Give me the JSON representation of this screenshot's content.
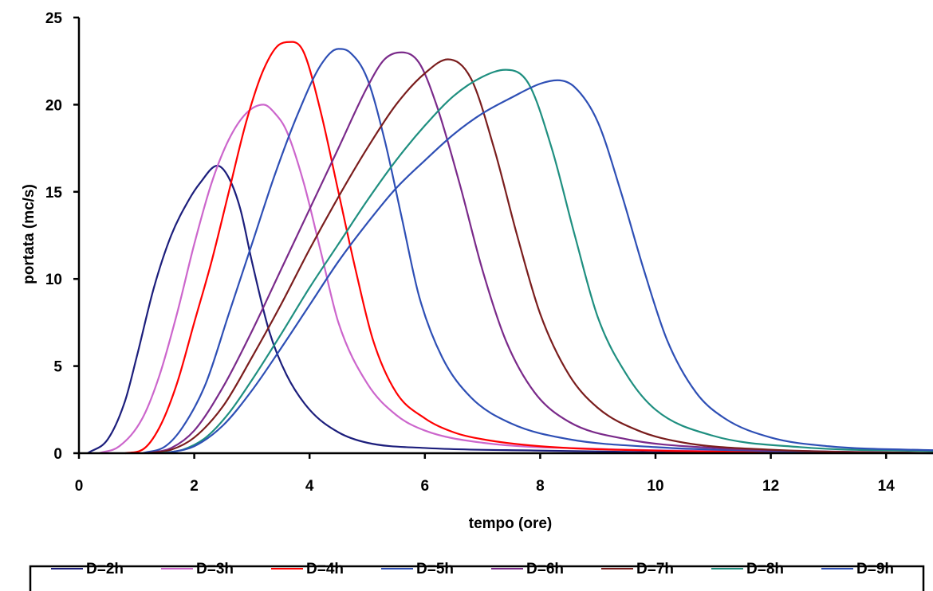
{
  "chart_data": {
    "type": "line",
    "title": "",
    "xlabel": "tempo (ore)",
    "ylabel": "portata (mc/s)",
    "xlim": [
      0,
      15
    ],
    "ylim": [
      0,
      25
    ],
    "xticks": [
      0,
      2,
      4,
      6,
      8,
      10,
      12,
      14
    ],
    "yticks": [
      0,
      5,
      10,
      15,
      20,
      25
    ],
    "grid": false,
    "legend_position": "bottom",
    "series": [
      {
        "name": "D=2h",
        "color": "#1c1e7c",
        "x": [
          0.15,
          0.5,
          0.8,
          1.0,
          1.3,
          1.6,
          1.9,
          2.1,
          2.4,
          2.6,
          2.8,
          3.0,
          3.3,
          3.6,
          4.0,
          4.5,
          5.0,
          6.0,
          8.0,
          10.0,
          12.0,
          15.0
        ],
        "y": [
          0,
          0.8,
          3,
          5.5,
          9.5,
          12.5,
          14.5,
          15.5,
          16.5,
          15.8,
          14,
          11,
          7,
          4.5,
          2.5,
          1.2,
          0.6,
          0.3,
          0.15,
          0.05,
          0.02,
          0
        ]
      },
      {
        "name": "D=3h",
        "color": "#cc66cc",
        "x": [
          0.35,
          0.7,
          1.1,
          1.4,
          1.7,
          2.0,
          2.3,
          2.6,
          2.9,
          3.2,
          3.4,
          3.6,
          3.9,
          4.2,
          4.5,
          5.0,
          5.5,
          6.0,
          7.0,
          9.0,
          12.0,
          15.0
        ],
        "y": [
          0,
          0.4,
          2,
          4.5,
          8,
          12,
          15.5,
          18,
          19.5,
          20,
          19.5,
          18.5,
          15.5,
          11.5,
          7.5,
          4,
          2.2,
          1.3,
          0.6,
          0.25,
          0.1,
          0
        ]
      },
      {
        "name": "D=4h",
        "color": "#ff0000",
        "x": [
          0.8,
          1.1,
          1.4,
          1.7,
          2.0,
          2.3,
          2.6,
          2.9,
          3.2,
          3.5,
          3.7,
          3.9,
          4.2,
          4.5,
          4.8,
          5.1,
          5.5,
          6.0,
          6.5,
          7.0,
          8.0,
          10.0,
          15.0
        ],
        "y": [
          0,
          0.2,
          1.5,
          4,
          7.5,
          11,
          15,
          19,
          22,
          23.5,
          23.6,
          23,
          19.5,
          15,
          10.5,
          6.5,
          3.5,
          2,
          1.2,
          0.8,
          0.4,
          0.15,
          0
        ]
      },
      {
        "name": "D=5h",
        "color": "#2e4fb5",
        "x": [
          1.1,
          1.5,
          1.8,
          2.2,
          2.6,
          3.0,
          3.4,
          3.8,
          4.2,
          4.5,
          4.7,
          5.0,
          5.3,
          5.6,
          5.9,
          6.3,
          6.8,
          7.5,
          8.5,
          10.0,
          12.0,
          15.0
        ],
        "y": [
          0,
          0.4,
          1.5,
          4,
          8,
          12,
          16,
          19.5,
          22.3,
          23.2,
          23,
          21.5,
          18,
          13.5,
          9,
          5.5,
          3.2,
          1.7,
          0.8,
          0.35,
          0.12,
          0
        ]
      },
      {
        "name": "D=6h",
        "color": "#7a2a8a",
        "x": [
          1.2,
          1.6,
          2.0,
          2.5,
          3.0,
          3.5,
          4.0,
          4.5,
          5.0,
          5.3,
          5.6,
          5.9,
          6.2,
          6.6,
          7.0,
          7.4,
          7.9,
          8.5,
          9.5,
          11.0,
          13.0,
          15.0
        ],
        "y": [
          0,
          0.3,
          1.3,
          3.8,
          7,
          10.5,
          14,
          17.5,
          21,
          22.6,
          23,
          22.4,
          20,
          15.5,
          10.5,
          6.5,
          3.5,
          1.8,
          0.8,
          0.3,
          0.1,
          0
        ]
      },
      {
        "name": "D=7h",
        "color": "#7a1d1d",
        "x": [
          1.2,
          1.6,
          2.0,
          2.5,
          3.0,
          3.5,
          4.0,
          4.5,
          5.0,
          5.5,
          6.0,
          6.4,
          6.8,
          7.2,
          7.6,
          8.0,
          8.5,
          9.0,
          9.7,
          10.5,
          12.0,
          15.0
        ],
        "y": [
          0,
          0.2,
          0.9,
          2.7,
          5.5,
          8.5,
          11.7,
          14.7,
          17.5,
          20,
          21.8,
          22.6,
          21.5,
          17.5,
          12.5,
          8,
          4.5,
          2.6,
          1.3,
          0.6,
          0.2,
          0
        ]
      },
      {
        "name": "D=8h",
        "color": "#1f8f80",
        "x": [
          1.4,
          1.8,
          2.2,
          2.6,
          3.0,
          3.5,
          4.0,
          4.5,
          5.0,
          5.5,
          6.0,
          6.5,
          7.0,
          7.4,
          7.8,
          8.2,
          8.6,
          9.0,
          9.5,
          10.0,
          11.0,
          12.5,
          15.0
        ],
        "y": [
          0,
          0.2,
          0.9,
          2.3,
          4.2,
          6.8,
          9.5,
          12,
          14.5,
          16.8,
          18.8,
          20.5,
          21.6,
          22,
          21.2,
          17.5,
          12.5,
          7.8,
          4.5,
          2.5,
          1,
          0.35,
          0.1
        ]
      },
      {
        "name": "D=9h",
        "color": "#2e4fb5",
        "x": [
          1.5,
          2.0,
          2.5,
          3.0,
          3.5,
          4.0,
          4.5,
          5.0,
          5.5,
          6.0,
          6.5,
          7.0,
          7.5,
          8.0,
          8.3,
          8.6,
          9.0,
          9.4,
          9.8,
          10.2,
          10.7,
          11.2,
          12.0,
          13.0,
          15.0
        ],
        "y": [
          0,
          0.4,
          1.6,
          3.6,
          6,
          8.5,
          11,
          13.2,
          15.2,
          16.8,
          18.3,
          19.5,
          20.4,
          21.2,
          21.4,
          21,
          19,
          15,
          10.5,
          6.5,
          3.5,
          2,
          0.9,
          0.4,
          0.15
        ]
      }
    ]
  }
}
